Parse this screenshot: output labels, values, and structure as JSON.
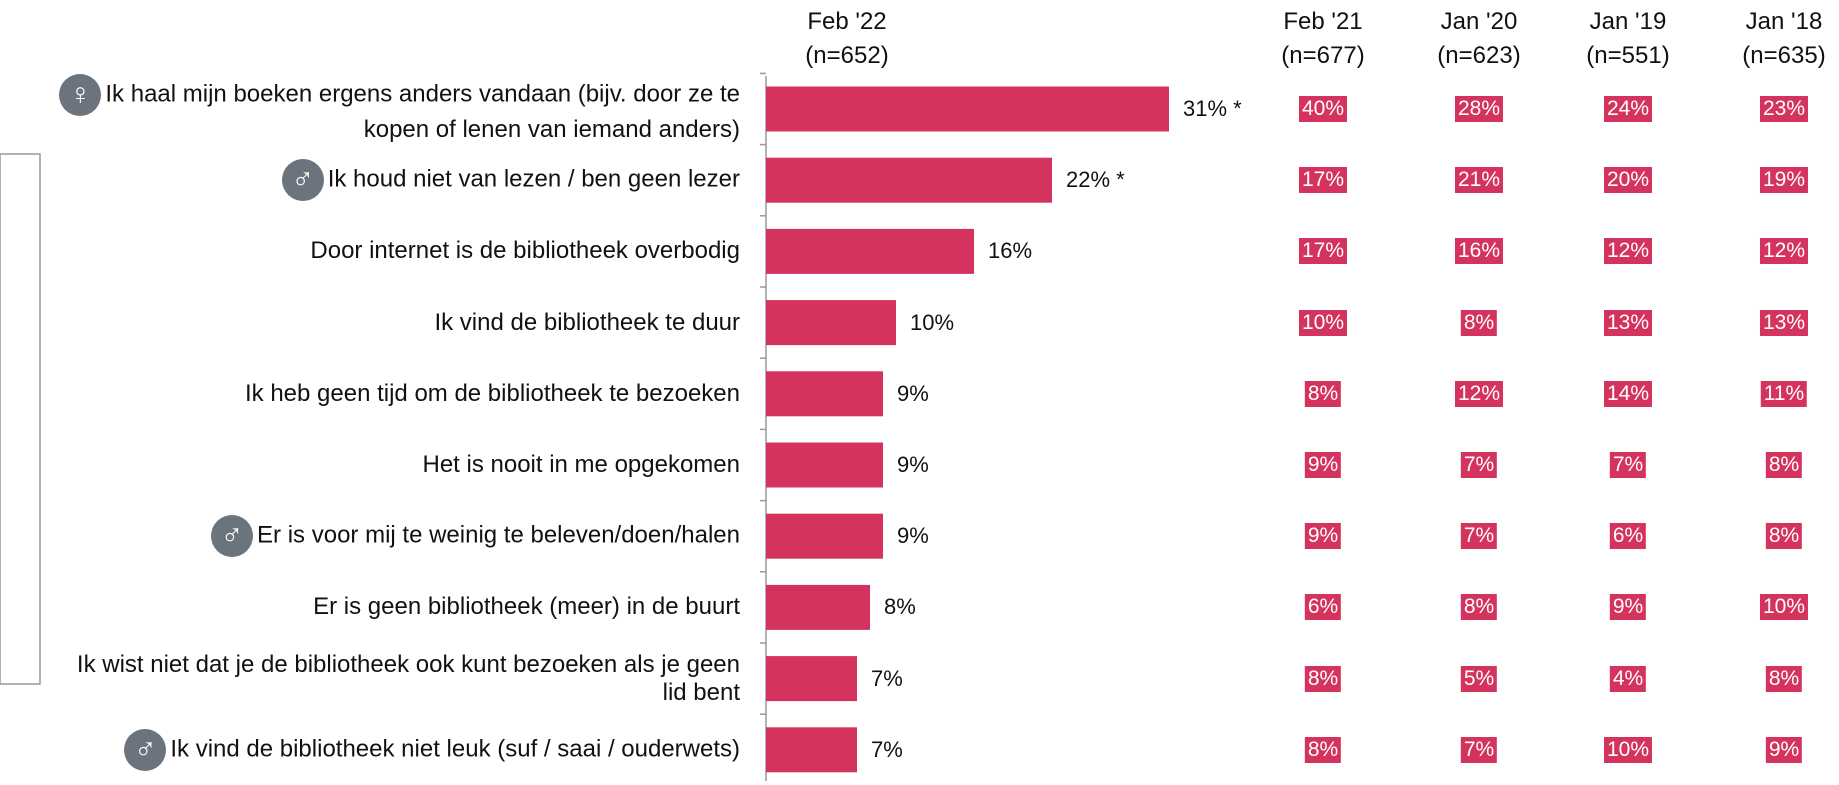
{
  "chart_data": {
    "type": "bar",
    "orientation": "horizontal",
    "categories": [
      "Ik haal mijn boeken ergens anders vandaan (bijv. door ze te kopen of lenen van iemand anders)",
      "Ik houd niet van lezen / ben geen lezer",
      "Door internet is de bibliotheek overbodig",
      "Ik vind de bibliotheek te duur",
      "Ik heb geen tijd om de bibliotheek te bezoeken",
      "Het is nooit in me opgekomen",
      "Er is voor mij te weinig te beleven/doen/halen",
      "Er is geen bibliotheek (meer) in de buurt",
      "Ik wist niet dat je de bibliotheek ook kunt bezoeken als je geen lid bent",
      "Ik vind de bibliotheek niet leuk (suf / saai / ouderwets)"
    ],
    "icons": [
      "♀",
      "♂",
      null,
      null,
      null,
      null,
      "♂",
      null,
      null,
      "♂"
    ],
    "xlim": [
      0,
      40
    ],
    "color": "#d4335e",
    "series": [
      {
        "name": "Feb '22",
        "sample": "(n=652)",
        "values": [
          31,
          22,
          16,
          10,
          9,
          9,
          9,
          8,
          7,
          7
        ],
        "value_labels": [
          "31% *",
          "22% *",
          "16%",
          "10%",
          "9%",
          "9%",
          "9%",
          "8%",
          "7%",
          "7%"
        ]
      },
      {
        "name": "Feb '21",
        "sample": "(n=677)",
        "values": [
          40,
          17,
          17,
          10,
          8,
          9,
          9,
          6,
          8,
          8
        ],
        "value_labels": [
          "40%",
          "17%",
          "17%",
          "10%",
          "8%",
          "9%",
          "9%",
          "6%",
          "8%",
          "8%"
        ]
      },
      {
        "name": "Jan '20",
        "sample": "(n=623)",
        "values": [
          28,
          21,
          16,
          8,
          12,
          7,
          7,
          8,
          5,
          7
        ],
        "value_labels": [
          "28%",
          "21%",
          "16%",
          "8%",
          "12%",
          "7%",
          "7%",
          "8%",
          "5%",
          "7%"
        ]
      },
      {
        "name": "Jan '19",
        "sample": "(n=551)",
        "values": [
          24,
          20,
          12,
          13,
          14,
          7,
          6,
          9,
          4,
          10
        ],
        "value_labels": [
          "24%",
          "20%",
          "12%",
          "13%",
          "14%",
          "7%",
          "6%",
          "9%",
          "4%",
          "10%"
        ]
      },
      {
        "name": "Jan '18",
        "sample": "(n=635)",
        "values": [
          23,
          19,
          12,
          13,
          11,
          8,
          8,
          10,
          8,
          9
        ],
        "value_labels": [
          "23%",
          "19%",
          "12%",
          "13%",
          "11%",
          "8%",
          "8%",
          "10%",
          "8%",
          "9%"
        ]
      }
    ]
  }
}
